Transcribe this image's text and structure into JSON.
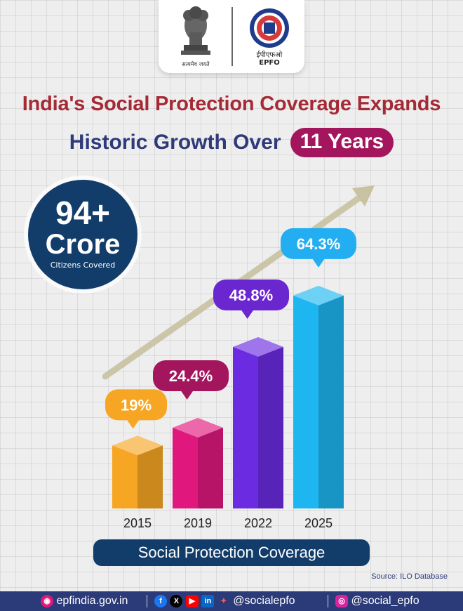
{
  "header": {
    "emblem_motto": "सत्यमेव जयते",
    "org_hindi": "ईपीएफओ",
    "org_name": "EPFO"
  },
  "title": "India's Social Protection Coverage Expands",
  "subtitle": "Historic Growth Over",
  "subtitle_highlight": "11 Years",
  "highlight": {
    "value": "94+",
    "unit": "Crore",
    "caption": "Citizens Covered"
  },
  "chart_data": {
    "type": "bar",
    "categories": [
      "2015",
      "2019",
      "2022",
      "2025"
    ],
    "values": [
      19,
      24.4,
      48.8,
      64.3
    ],
    "value_labels": [
      "19%",
      "24.4%",
      "48.8%",
      "64.3%"
    ],
    "title": "",
    "xlabel": "Social Protection Coverage",
    "ylabel": "",
    "ylim": [
      0,
      70
    ],
    "grid": false,
    "colors": [
      "#f6a623",
      "#e0187d",
      "#6b2be0",
      "#1eb6f0"
    ],
    "label_colors": [
      "#f6a623",
      "#a3155c",
      "#6a26cf",
      "#22aef0"
    ]
  },
  "source": "Source: ILO Database",
  "footer": {
    "website": "epfindia.gov.in",
    "social_handle": "@socialepfo",
    "instagram_handle": "@social_epfo",
    "icons": [
      "web-icon",
      "facebook-icon",
      "x-icon",
      "youtube-icon",
      "linkedin-icon",
      "koo-icon",
      "instagram-icon"
    ]
  }
}
